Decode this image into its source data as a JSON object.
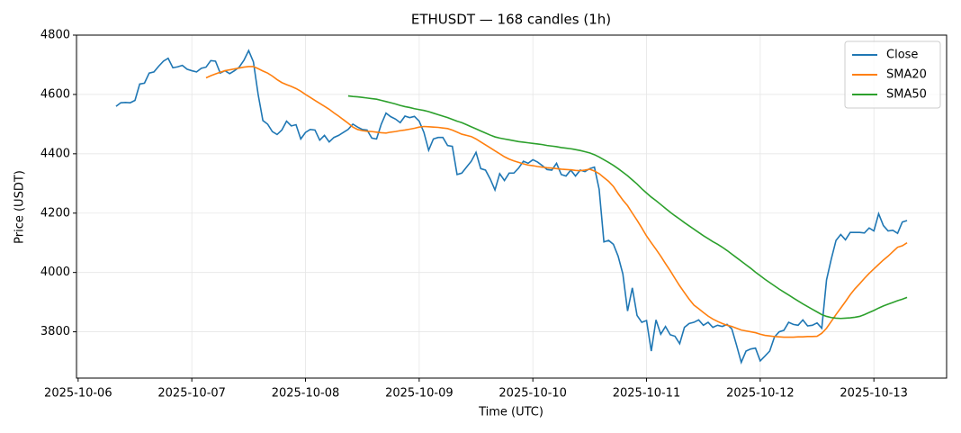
{
  "chart_data": {
    "type": "line",
    "title": "ETHUSDT — 168 candles (1h)",
    "xlabel": "Time (UTC)",
    "ylabel": "Price (USDT)",
    "x": [
      "2025-10-06 08:00",
      "2025-10-06 09:00",
      "2025-10-06 10:00",
      "2025-10-06 11:00",
      "2025-10-06 12:00",
      "2025-10-06 13:00",
      "2025-10-06 14:00",
      "2025-10-06 15:00",
      "2025-10-06 16:00",
      "2025-10-06 17:00",
      "2025-10-06 18:00",
      "2025-10-06 19:00",
      "2025-10-06 20:00",
      "2025-10-06 21:00",
      "2025-10-06 22:00",
      "2025-10-06 23:00",
      "2025-10-07 00:00",
      "2025-10-07 01:00",
      "2025-10-07 02:00",
      "2025-10-07 03:00",
      "2025-10-07 04:00",
      "2025-10-07 05:00",
      "2025-10-07 06:00",
      "2025-10-07 07:00",
      "2025-10-07 08:00",
      "2025-10-07 09:00",
      "2025-10-07 10:00",
      "2025-10-07 11:00",
      "2025-10-07 12:00",
      "2025-10-07 13:00",
      "2025-10-07 14:00",
      "2025-10-07 15:00",
      "2025-10-07 16:00",
      "2025-10-07 17:00",
      "2025-10-07 18:00",
      "2025-10-07 19:00",
      "2025-10-07 20:00",
      "2025-10-07 21:00",
      "2025-10-07 22:00",
      "2025-10-07 23:00",
      "2025-10-08 00:00",
      "2025-10-08 01:00",
      "2025-10-08 02:00",
      "2025-10-08 03:00",
      "2025-10-08 04:00",
      "2025-10-08 05:00",
      "2025-10-08 06:00",
      "2025-10-08 07:00",
      "2025-10-08 08:00",
      "2025-10-08 09:00",
      "2025-10-08 10:00",
      "2025-10-08 11:00",
      "2025-10-08 12:00",
      "2025-10-08 13:00",
      "2025-10-08 14:00",
      "2025-10-08 15:00",
      "2025-10-08 16:00",
      "2025-10-08 17:00",
      "2025-10-08 18:00",
      "2025-10-08 19:00",
      "2025-10-08 20:00",
      "2025-10-08 21:00",
      "2025-10-08 22:00",
      "2025-10-08 23:00",
      "2025-10-09 00:00",
      "2025-10-09 01:00",
      "2025-10-09 02:00",
      "2025-10-09 03:00",
      "2025-10-09 04:00",
      "2025-10-09 05:00",
      "2025-10-09 06:00",
      "2025-10-09 07:00",
      "2025-10-09 08:00",
      "2025-10-09 09:00",
      "2025-10-09 10:00",
      "2025-10-09 11:00",
      "2025-10-09 12:00",
      "2025-10-09 13:00",
      "2025-10-09 14:00",
      "2025-10-09 15:00",
      "2025-10-09 16:00",
      "2025-10-09 17:00",
      "2025-10-09 18:00",
      "2025-10-09 19:00",
      "2025-10-09 20:00",
      "2025-10-09 21:00",
      "2025-10-09 22:00",
      "2025-10-09 23:00",
      "2025-10-10 00:00",
      "2025-10-10 01:00",
      "2025-10-10 02:00",
      "2025-10-10 03:00",
      "2025-10-10 04:00",
      "2025-10-10 05:00",
      "2025-10-10 06:00",
      "2025-10-10 07:00",
      "2025-10-10 08:00",
      "2025-10-10 09:00",
      "2025-10-10 10:00",
      "2025-10-10 11:00",
      "2025-10-10 12:00",
      "2025-10-10 13:00",
      "2025-10-10 14:00",
      "2025-10-10 15:00",
      "2025-10-10 16:00",
      "2025-10-10 17:00",
      "2025-10-10 18:00",
      "2025-10-10 19:00",
      "2025-10-10 20:00",
      "2025-10-10 21:00",
      "2025-10-10 22:00",
      "2025-10-10 23:00",
      "2025-10-11 00:00",
      "2025-10-11 01:00",
      "2025-10-11 02:00",
      "2025-10-11 03:00",
      "2025-10-11 04:00",
      "2025-10-11 05:00",
      "2025-10-11 06:00",
      "2025-10-11 07:00",
      "2025-10-11 08:00",
      "2025-10-11 09:00",
      "2025-10-11 10:00",
      "2025-10-11 11:00",
      "2025-10-11 12:00",
      "2025-10-11 13:00",
      "2025-10-11 14:00",
      "2025-10-11 15:00",
      "2025-10-11 16:00",
      "2025-10-11 17:00",
      "2025-10-11 18:00",
      "2025-10-11 19:00",
      "2025-10-11 20:00",
      "2025-10-11 21:00",
      "2025-10-11 22:00",
      "2025-10-11 23:00",
      "2025-10-12 00:00",
      "2025-10-12 01:00",
      "2025-10-12 02:00",
      "2025-10-12 03:00",
      "2025-10-12 04:00",
      "2025-10-12 05:00",
      "2025-10-12 06:00",
      "2025-10-12 07:00",
      "2025-10-12 08:00",
      "2025-10-12 09:00",
      "2025-10-12 10:00",
      "2025-10-12 11:00",
      "2025-10-12 12:00",
      "2025-10-12 13:00",
      "2025-10-12 14:00",
      "2025-10-12 15:00",
      "2025-10-12 16:00",
      "2025-10-12 17:00",
      "2025-10-12 18:00",
      "2025-10-12 19:00",
      "2025-10-12 20:00",
      "2025-10-12 21:00",
      "2025-10-12 22:00",
      "2025-10-12 23:00",
      "2025-10-13 00:00",
      "2025-10-13 01:00",
      "2025-10-13 02:00",
      "2025-10-13 03:00",
      "2025-10-13 04:00",
      "2025-10-13 05:00",
      "2025-10-13 06:00",
      "2025-10-13 07:00"
    ],
    "series": [
      {
        "name": "Close",
        "color": "#1f77b4",
        "values": [
          4560,
          4572,
          4573,
          4572,
          4580,
          4635,
          4638,
          4672,
          4676,
          4695,
          4712,
          4722,
          4690,
          4693,
          4698,
          4685,
          4680,
          4676,
          4688,
          4692,
          4714,
          4712,
          4672,
          4680,
          4670,
          4680,
          4692,
          4715,
          4748,
          4710,
          4600,
          4512,
          4500,
          4475,
          4465,
          4480,
          4510,
          4494,
          4498,
          4450,
          4472,
          4482,
          4480,
          4446,
          4462,
          4440,
          4455,
          4462,
          4472,
          4482,
          4500,
          4490,
          4482,
          4480,
          4453,
          4450,
          4500,
          4537,
          4525,
          4517,
          4505,
          4527,
          4522,
          4526,
          4510,
          4472,
          4412,
          4450,
          4455,
          4455,
          4428,
          4425,
          4330,
          4335,
          4355,
          4375,
          4405,
          4350,
          4345,
          4315,
          4278,
          4333,
          4310,
          4335,
          4335,
          4352,
          4375,
          4368,
          4380,
          4372,
          4360,
          4347,
          4345,
          4368,
          4330,
          4325,
          4345,
          4325,
          4345,
          4340,
          4350,
          4355,
          4280,
          4103,
          4108,
          4095,
          4055,
          3995,
          3870,
          3948,
          3855,
          3832,
          3838,
          3735,
          3840,
          3792,
          3818,
          3790,
          3785,
          3760,
          3815,
          3828,
          3832,
          3840,
          3822,
          3832,
          3815,
          3822,
          3818,
          3825,
          3810,
          3755,
          3697,
          3735,
          3742,
          3745,
          3702,
          3718,
          3735,
          3782,
          3800,
          3805,
          3832,
          3825,
          3822,
          3840,
          3820,
          3822,
          3830,
          3812,
          3975,
          4045,
          4108,
          4128,
          4110,
          4135,
          4135,
          4135,
          4133,
          4150,
          4140,
          4198,
          4158,
          4140,
          4142,
          4132,
          4170,
          4175
        ]
      },
      {
        "name": "SMA20",
        "color": "#ff7f0e",
        "values": [
          null,
          null,
          null,
          null,
          null,
          null,
          null,
          null,
          null,
          null,
          null,
          null,
          null,
          null,
          null,
          null,
          null,
          null,
          null,
          4656,
          4663,
          4669,
          4675,
          4680,
          4683,
          4686,
          4689,
          4692,
          4694,
          4694,
          4687,
          4679,
          4672,
          4662,
          4650,
          4640,
          4633,
          4627,
          4620,
          4611,
          4600,
          4590,
          4580,
          4570,
          4560,
          4550,
          4538,
          4527,
          4515,
          4503,
          4490,
          4482,
          4478,
          4476,
          4475,
          4473,
          4471,
          4470,
          4473,
          4475,
          4478,
          4480,
          4483,
          4486,
          4490,
          4492,
          4491,
          4490,
          4489,
          4487,
          4485,
          4480,
          4473,
          4466,
          4462,
          4458,
          4450,
          4440,
          4430,
          4420,
          4410,
          4400,
          4390,
          4382,
          4376,
          4371,
          4366,
          4362,
          4360,
          4357,
          4355,
          4353,
          4352,
          4350,
          4348,
          4347,
          4346,
          4344,
          4343,
          4345,
          4348,
          4342,
          4333,
          4320,
          4307,
          4290,
          4266,
          4244,
          4225,
          4200,
          4176,
          4150,
          4123,
          4100,
          4078,
          4055,
          4030,
          4006,
          3980,
          3955,
          3932,
          3910,
          3890,
          3878,
          3865,
          3853,
          3843,
          3835,
          3828,
          3822,
          3818,
          3812,
          3806,
          3803,
          3800,
          3797,
          3792,
          3788,
          3786,
          3784,
          3783,
          3782,
          3782,
          3782,
          3783,
          3783,
          3784,
          3784,
          3785,
          3795,
          3812,
          3835,
          3858,
          3880,
          3902,
          3925,
          3945,
          3962,
          3980,
          3997,
          4012,
          4027,
          4042,
          4055,
          4070,
          4085,
          4090,
          4100
        ]
      },
      {
        "name": "SMA50",
        "color": "#2ca02c",
        "values": [
          null,
          null,
          null,
          null,
          null,
          null,
          null,
          null,
          null,
          null,
          null,
          null,
          null,
          null,
          null,
          null,
          null,
          null,
          null,
          null,
          null,
          null,
          null,
          null,
          null,
          null,
          null,
          null,
          null,
          null,
          null,
          null,
          null,
          null,
          null,
          null,
          null,
          null,
          null,
          null,
          null,
          null,
          null,
          null,
          null,
          null,
          null,
          null,
          null,
          4595,
          4593,
          4592,
          4590,
          4588,
          4586,
          4584,
          4580,
          4576,
          4572,
          4568,
          4563,
          4559,
          4556,
          4552,
          4549,
          4546,
          4542,
          4537,
          4532,
          4527,
          4522,
          4516,
          4510,
          4505,
          4498,
          4491,
          4484,
          4477,
          4470,
          4463,
          4457,
          4453,
          4450,
          4447,
          4444,
          4441,
          4439,
          4437,
          4435,
          4433,
          4431,
          4428,
          4426,
          4424,
          4421,
          4419,
          4417,
          4414,
          4411,
          4407,
          4403,
          4397,
          4389,
          4380,
          4371,
          4361,
          4350,
          4338,
          4326,
          4312,
          4298,
          4282,
          4268,
          4254,
          4242,
          4229,
          4216,
          4203,
          4191,
          4180,
          4168,
          4157,
          4146,
          4135,
          4124,
          4114,
          4104,
          4095,
          4085,
          4074,
          4062,
          4050,
          4038,
          4026,
          4014,
          4001,
          3989,
          3977,
          3966,
          3955,
          3944,
          3934,
          3924,
          3914,
          3904,
          3894,
          3885,
          3876,
          3867,
          3858,
          3852,
          3848,
          3846,
          3845,
          3846,
          3847,
          3849,
          3852,
          3858,
          3865,
          3872,
          3880,
          3887,
          3893,
          3899,
          3905,
          3910,
          3916
        ]
      }
    ],
    "xlim": [
      "2025-10-05 23:39",
      "2025-10-13 15:21"
    ],
    "xticks": [
      "2025-10-06",
      "2025-10-07",
      "2025-10-08",
      "2025-10-09",
      "2025-10-10",
      "2025-10-11",
      "2025-10-12",
      "2025-10-13"
    ],
    "ylim": [
      3644,
      4800
    ],
    "yticks": [
      3800,
      4000,
      4200,
      4400,
      4600,
      4800
    ],
    "grid": true,
    "legend": "upper right"
  }
}
